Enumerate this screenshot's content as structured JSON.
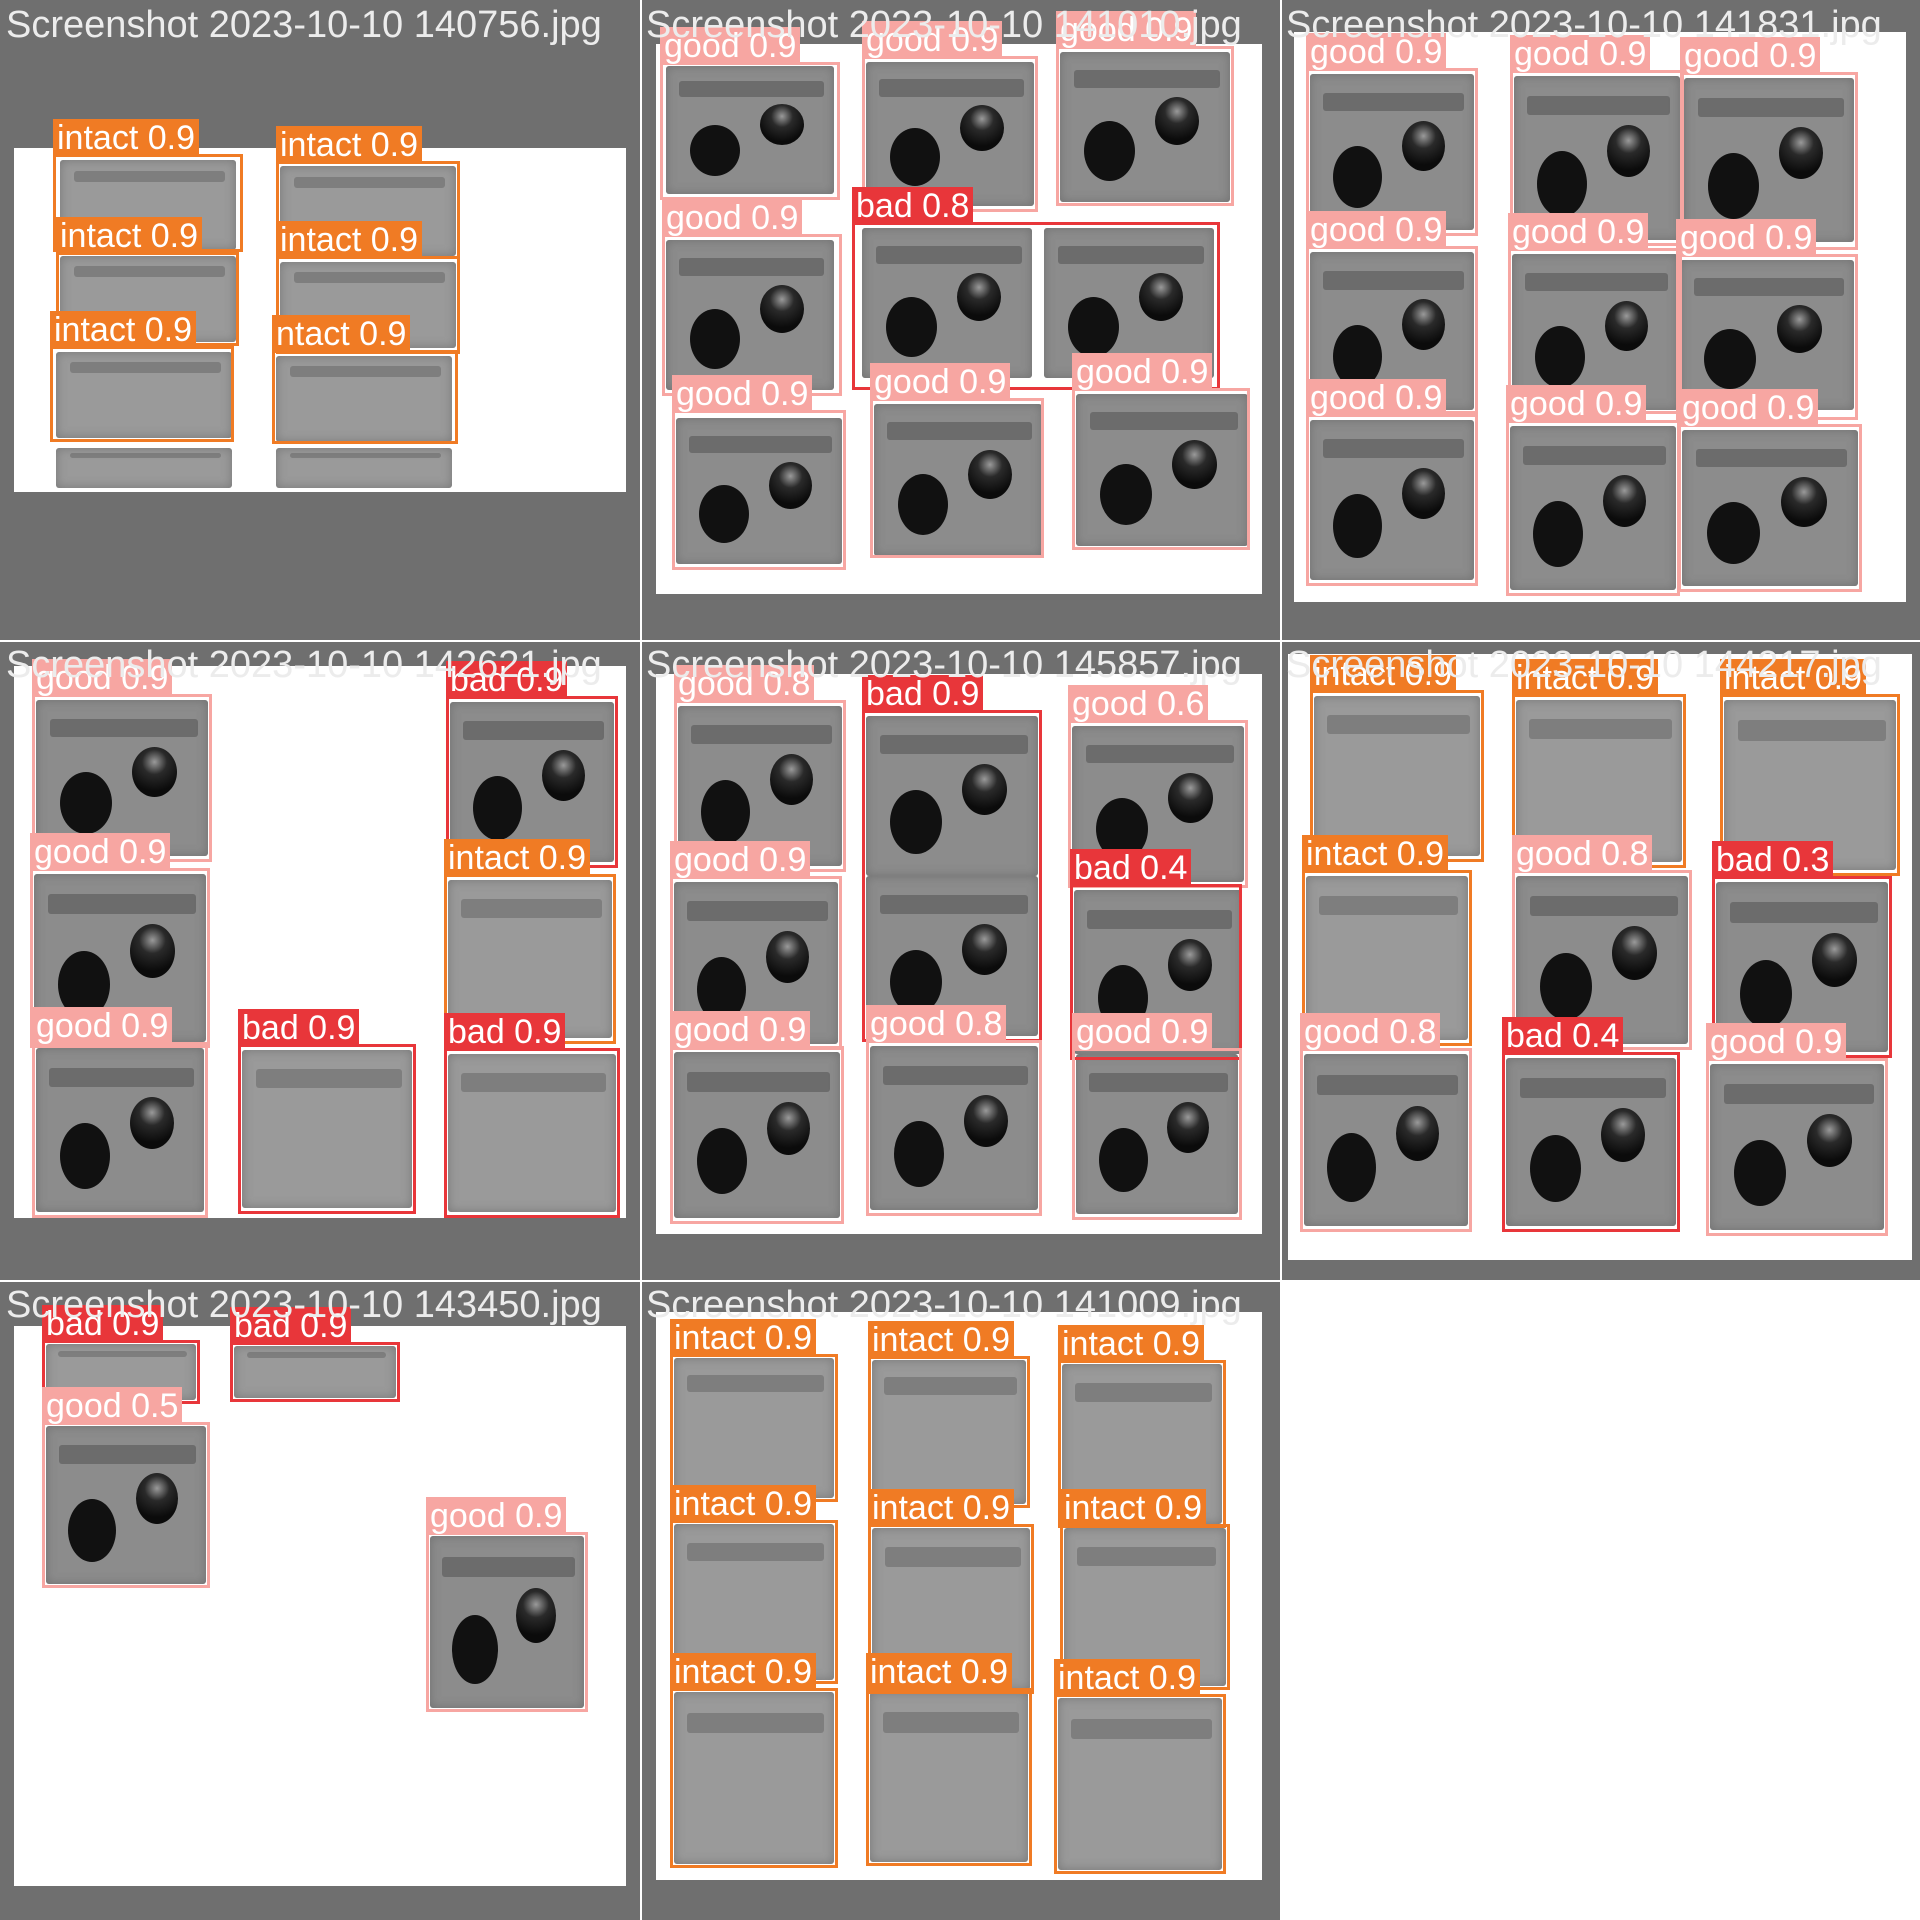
{
  "colors": {
    "good": "#f7a6a2",
    "bad": "#e8363a",
    "intact": "#f07b24",
    "tile_background": "#6f6f6f",
    "title_text": "#ececec"
  },
  "tiles": [
    {
      "title": "Screenshot 2023-10-10 140756.jpg",
      "detections": [
        {
          "label": "intact 0.9",
          "class": "intact"
        },
        {
          "label": "intact 0.9",
          "class": "intact"
        },
        {
          "label": "intact 0.9",
          "class": "intact"
        },
        {
          "label": "intact 0.9",
          "class": "intact"
        },
        {
          "label": "intact 0.9",
          "class": "intact"
        },
        {
          "label": "ntact 0.9",
          "class": "intact"
        }
      ]
    },
    {
      "title": "Screenshot 2023-10-10 141010.jpg",
      "detections": [
        {
          "label": "good 0.9",
          "class": "good"
        },
        {
          "label": "good 0.9",
          "class": "good"
        },
        {
          "label": "good 0.9",
          "class": "good"
        },
        {
          "label": "good 0.9",
          "class": "good"
        },
        {
          "label": "bad 0.8",
          "class": "bad"
        },
        {
          "label": "good 0.9",
          "class": "good"
        },
        {
          "label": "good 0.9",
          "class": "good"
        },
        {
          "label": "good 0.9",
          "class": "good"
        }
      ]
    },
    {
      "title": "Screenshot 2023-10-10 141831.jpg",
      "detections": [
        {
          "label": "good 0.9",
          "class": "good"
        },
        {
          "label": "good 0.9",
          "class": "good"
        },
        {
          "label": "good 0.9",
          "class": "good"
        },
        {
          "label": "good 0.9",
          "class": "good"
        },
        {
          "label": "good 0.9",
          "class": "good"
        },
        {
          "label": "good 0.9",
          "class": "good"
        },
        {
          "label": "good 0.9",
          "class": "good"
        },
        {
          "label": "good 0.9",
          "class": "good"
        },
        {
          "label": "good 0.9",
          "class": "good"
        }
      ]
    },
    {
      "title": "Screenshot 2023-10-10 142621.jpg",
      "detections": [
        {
          "label": "good 0.9",
          "class": "good"
        },
        {
          "label": "bad 0.9",
          "class": "bad"
        },
        {
          "label": "good 0.9",
          "class": "good"
        },
        {
          "label": "intact 0.9",
          "class": "intact"
        },
        {
          "label": "good 0.9",
          "class": "good"
        },
        {
          "label": "bad 0.9",
          "class": "bad"
        },
        {
          "label": "bad 0.9",
          "class": "bad"
        }
      ]
    },
    {
      "title": "Screenshot 2023-10-10 145857.jpg",
      "detections": [
        {
          "label": "good 0.8",
          "class": "good"
        },
        {
          "label": "bad 0.9",
          "class": "bad"
        },
        {
          "label": "good 0.6",
          "class": "good"
        },
        {
          "label": "bad 0.4",
          "class": "bad"
        },
        {
          "label": "good 0.9",
          "class": "good"
        },
        {
          "label": "good 0.8",
          "class": "good"
        },
        {
          "label": "good 0.9",
          "class": "good"
        },
        {
          "label": "good 0.9",
          "class": "good"
        },
        {
          "label": "good 0.9",
          "class": "good"
        }
      ]
    },
    {
      "title": "Screenshot 2023-10-10 144217.jpg",
      "detections": [
        {
          "label": "intact 0.9",
          "class": "intact"
        },
        {
          "label": "intact 0.9",
          "class": "intact"
        },
        {
          "label": "intact 0.9",
          "class": "intact"
        },
        {
          "label": "intact 0.9",
          "class": "intact"
        },
        {
          "label": "good 0.8",
          "class": "good"
        },
        {
          "label": "bad 0.3",
          "class": "bad"
        },
        {
          "label": "good 0.8",
          "class": "good"
        },
        {
          "label": "bad 0.4",
          "class": "bad"
        },
        {
          "label": "good 0.9",
          "class": "good"
        },
        {
          "label": "good 0.9",
          "class": "good"
        },
        {
          "label": "good 0.9",
          "class": "good"
        }
      ]
    },
    {
      "title": "Screenshot 2023-10-10 143450.jpg",
      "detections": [
        {
          "label": "bad 0.9",
          "class": "bad"
        },
        {
          "label": "bad 0.9",
          "class": "bad"
        },
        {
          "label": "good 0.5",
          "class": "good"
        },
        {
          "label": "good 0.9",
          "class": "good"
        }
      ]
    },
    {
      "title": "Screenshot 2023-10-10 141009.jpg",
      "detections": [
        {
          "label": "intact 0.9",
          "class": "intact"
        },
        {
          "label": "intact 0.9",
          "class": "intact"
        },
        {
          "label": "intact 0.9",
          "class": "intact"
        },
        {
          "label": "intact 0.9",
          "class": "intact"
        },
        {
          "label": "intact 0.9",
          "class": "intact"
        },
        {
          "label": "intact 0.9",
          "class": "intact"
        },
        {
          "label": "intact 0.9",
          "class": "intact"
        },
        {
          "label": "intact 0.9",
          "class": "intact"
        },
        {
          "label": "intact 0.9",
          "class": "intact"
        }
      ]
    }
  ]
}
